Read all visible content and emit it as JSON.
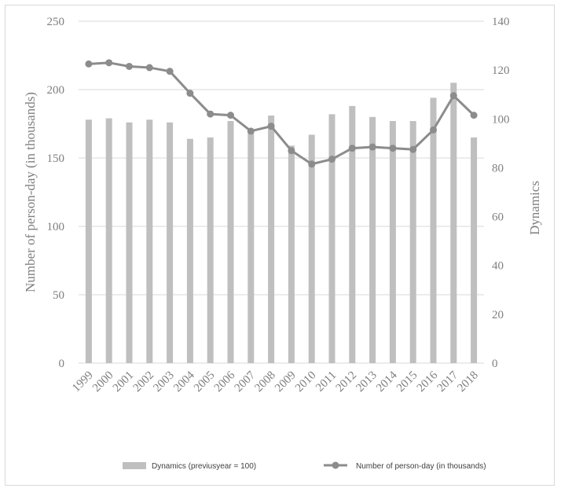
{
  "chart_data": {
    "type": "bar",
    "categories": [
      "1999",
      "2000",
      "2001",
      "2002",
      "2003",
      "2004",
      "2005",
      "2006",
      "2007",
      "2008",
      "2009",
      "2010",
      "2011",
      "2012",
      "2013",
      "2014",
      "2015",
      "2016",
      "2017",
      "2018"
    ],
    "series": [
      {
        "name": "Dynamics (previusyear = 100)",
        "type": "bar",
        "axis": "right",
        "values": [
          178,
          179,
          176,
          178,
          176,
          164,
          165,
          177,
          170,
          181,
          159,
          167,
          182,
          188,
          180,
          177,
          177,
          194,
          205,
          165
        ]
      },
      {
        "name": "Number of person-day (in thousands)",
        "type": "line",
        "axis": "right",
        "values": [
          122.5,
          123.0,
          121.5,
          121.0,
          119.5,
          110.5,
          102.0,
          101.5,
          95.0,
          97.0,
          87.0,
          81.5,
          83.5,
          88.0,
          88.5,
          88.0,
          87.5,
          95.5,
          109.5,
          101.5
        ]
      }
    ],
    "ylabel": "Number of person-day (in thousands)",
    "y2label": "Dynamics",
    "ylim": [
      0,
      250
    ],
    "y2lim": [
      0,
      140
    ],
    "yticks": [
      0,
      50,
      100,
      150,
      200,
      250
    ],
    "y2ticks": [
      0,
      20,
      40,
      60,
      80,
      100,
      120,
      140
    ],
    "grid": true,
    "legend": "bottom",
    "colors": {
      "bar": "#bfbfbf",
      "line": "#8c8c8c",
      "grid": "#d9d9d9",
      "text": "#7f7f7f"
    }
  }
}
